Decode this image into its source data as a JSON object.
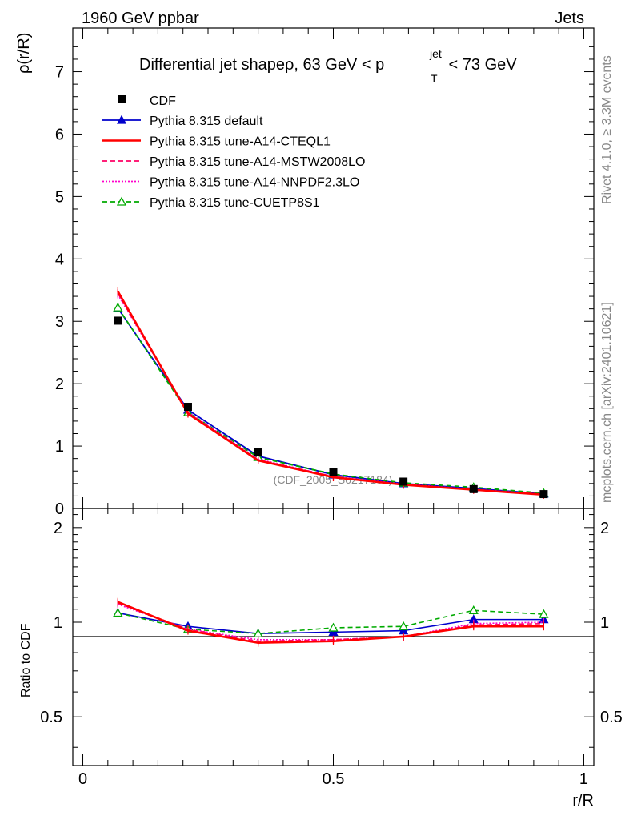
{
  "header": {
    "left": "1960 GeV ppbar",
    "right": "Jets"
  },
  "side": {
    "top": "Rivet 4.1.0, ≥ 3.3M events",
    "bottom": "mcplots.cern.ch [arXiv:2401.10621]"
  },
  "title": {
    "main": "Differential jet shapeρ, 63 GeV < p",
    "sup": "jet",
    "sub": "T",
    "tail": " < 73 GeV"
  },
  "watermark": "(CDF_2005_S6217184)",
  "chart_data": {
    "type": "line",
    "xlabel": "r/R",
    "ylabel": "ρ(r/R)",
    "ratio_ylabel": "Ratio to CDF",
    "xlim": [
      -0.02,
      1.02
    ],
    "ylim": [
      0,
      7.7
    ],
    "ratio_ylim": [
      0.35,
      2.3
    ],
    "x_ticks": [
      0,
      0.5,
      1
    ],
    "x_tick_labels": [
      "0",
      "0.5",
      "1"
    ],
    "y_ticks": [
      0,
      1,
      2,
      3,
      4,
      5,
      6,
      7
    ],
    "y_tick_labels": [
      "0",
      "1",
      "2",
      "3",
      "4",
      "5",
      "6",
      "7"
    ],
    "ratio_ticks": [
      0.5,
      1,
      2
    ],
    "ratio_tick_labels": [
      "0.5",
      "1",
      "2"
    ],
    "x": [
      0.07,
      0.21,
      0.35,
      0.5,
      0.64,
      0.78,
      0.92
    ],
    "data": {
      "name": "CDF",
      "values": [
        3.01,
        1.63,
        0.9,
        0.58,
        0.43,
        0.31,
        0.23
      ]
    },
    "series": [
      {
        "name": "Pythia 8.315 default",
        "color": "#0000cc",
        "style": "solid",
        "marker": "triangle-filled",
        "values": [
          3.21,
          1.58,
          0.84,
          0.54,
          0.4,
          0.32,
          0.235
        ],
        "ratio": [
          1.07,
          0.97,
          0.92,
          0.93,
          0.94,
          1.02,
          1.02
        ]
      },
      {
        "name": "Pythia 8.315 tune-A14-CTEQL1",
        "color": "#ff0000",
        "style": "solid",
        "marker": "none",
        "values": [
          3.48,
          1.52,
          0.77,
          0.5,
          0.38,
          0.3,
          0.22
        ],
        "ratio": [
          1.16,
          0.94,
          0.86,
          0.87,
          0.9,
          0.97,
          0.97
        ]
      },
      {
        "name": "Pythia 8.315 tune-A14-MSTW2008LO",
        "color": "#ff0066",
        "style": "dashed",
        "marker": "none",
        "values": [
          3.45,
          1.53,
          0.78,
          0.51,
          0.38,
          0.3,
          0.225
        ],
        "ratio": [
          1.15,
          0.95,
          0.87,
          0.88,
          0.9,
          0.98,
          0.99
        ]
      },
      {
        "name": "Pythia 8.315 tune-A14-NNPDF2.3LO",
        "color": "#ff00cc",
        "style": "dotted",
        "marker": "none",
        "values": [
          3.43,
          1.54,
          0.79,
          0.51,
          0.39,
          0.305,
          0.228
        ],
        "ratio": [
          1.14,
          0.95,
          0.88,
          0.88,
          0.9,
          0.99,
          1.0
        ]
      },
      {
        "name": "Pythia 8.315 tune-CUETP8S1",
        "color": "#00aa00",
        "style": "dashed",
        "marker": "triangle-open",
        "values": [
          3.22,
          1.54,
          0.82,
          0.55,
          0.41,
          0.34,
          0.245
        ],
        "ratio": [
          1.07,
          0.95,
          0.92,
          0.96,
          0.97,
          1.09,
          1.06
        ]
      }
    ]
  }
}
